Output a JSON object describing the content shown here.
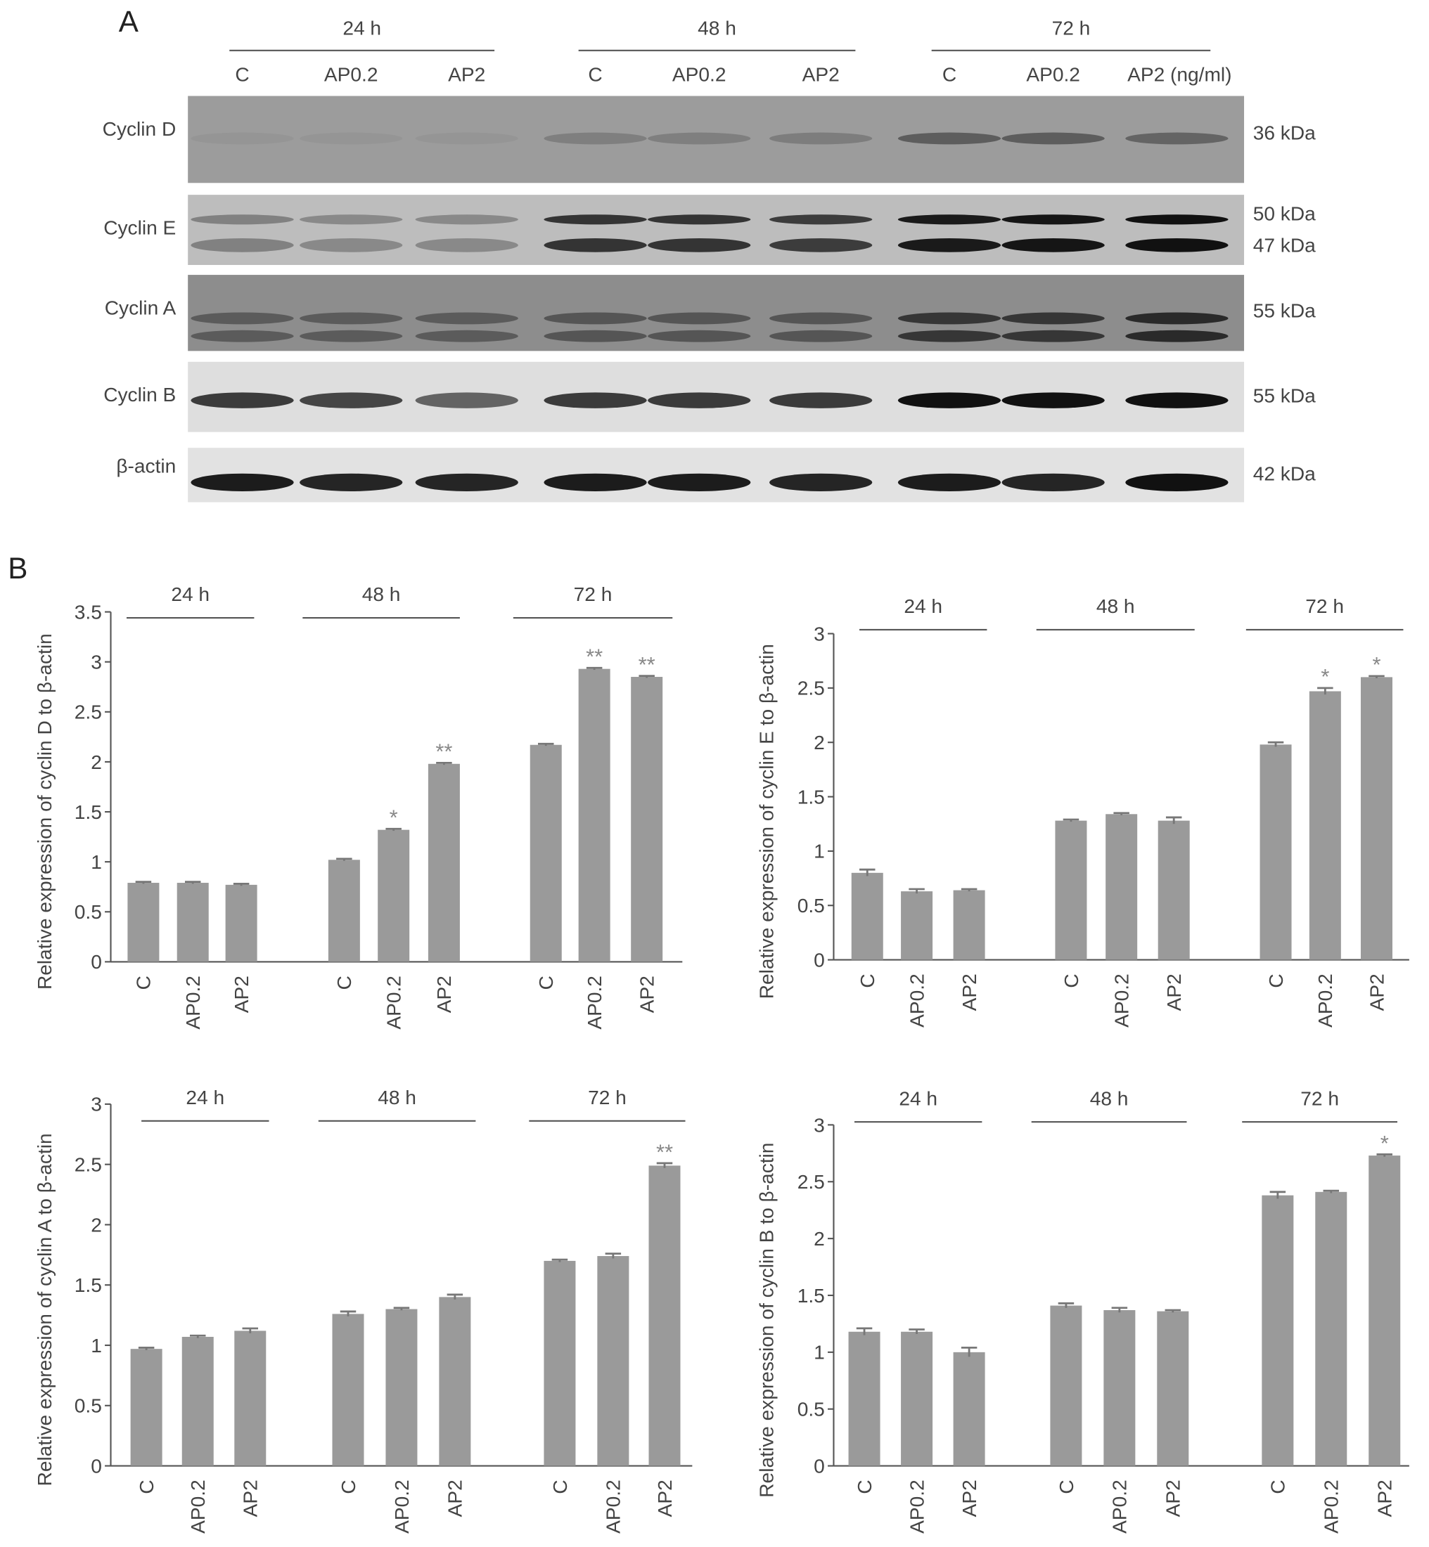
{
  "panel_a": {
    "label": "A",
    "time_groups": [
      "24 h",
      "48 h",
      "72 h"
    ],
    "lanes": [
      "C",
      "AP0.2",
      "AP2",
      "C",
      "AP0.2",
      "AP2",
      "C",
      "AP0.2",
      "AP2 (ng/ml)"
    ],
    "blots": [
      {
        "protein": "Cyclin D",
        "sizes": [
          "36 kDa"
        ]
      },
      {
        "protein": "Cyclin E",
        "sizes": [
          "50 kDa",
          "47 kDa"
        ]
      },
      {
        "protein": "Cyclin A",
        "sizes": [
          "55 kDa"
        ]
      },
      {
        "protein": "Cyclin B",
        "sizes": [
          "55 kDa"
        ]
      },
      {
        "protein": "β-actin",
        "sizes": [
          "42 kDa"
        ]
      }
    ]
  },
  "panel_b": {
    "label": "B"
  },
  "chart_data": [
    {
      "type": "bar",
      "ylabel": "Relative expression of cyclin D to β-actin",
      "groups": [
        "24 h",
        "48 h",
        "72 h"
      ],
      "categories": [
        "C",
        "AP0.2",
        "AP2",
        "C",
        "AP0.2",
        "AP2",
        "C",
        "AP0.2",
        "AP2"
      ],
      "values": [
        0.79,
        0.79,
        0.77,
        1.02,
        1.32,
        1.98,
        2.17,
        2.93,
        2.85
      ],
      "errors": [
        0.01,
        0.01,
        0.01,
        0.01,
        0.01,
        0.01,
        0.01,
        0.01,
        0.01
      ],
      "significance": [
        null,
        null,
        null,
        null,
        "*",
        "**",
        null,
        "**",
        "**"
      ],
      "color": "#9a9a9a",
      "ylim": [
        0,
        3.5
      ],
      "yticks": [
        0,
        0.5,
        1,
        1.5,
        2,
        2.5,
        3,
        3.5
      ]
    },
    {
      "type": "bar",
      "ylabel": "Relative expression of cyclin E to β-actin",
      "groups": [
        "24 h",
        "48 h",
        "72 h"
      ],
      "categories": [
        "C",
        "AP0.2",
        "AP2",
        "C",
        "AP0.2",
        "AP2",
        "C",
        "AP0.2",
        "AP2"
      ],
      "values": [
        0.8,
        0.63,
        0.64,
        1.28,
        1.34,
        1.28,
        1.98,
        2.47,
        2.6
      ],
      "errors": [
        0.03,
        0.02,
        0.01,
        0.01,
        0.01,
        0.03,
        0.02,
        0.03,
        0.01
      ],
      "significance": [
        null,
        null,
        null,
        null,
        null,
        null,
        null,
        "*",
        "*"
      ],
      "color": "#9a9a9a",
      "ylim": [
        0,
        3
      ],
      "yticks": [
        0,
        0.5,
        1,
        1.5,
        2,
        2.5,
        3
      ]
    },
    {
      "type": "bar",
      "ylabel": "Relative expression of cyclin A to β-actin",
      "groups": [
        "24 h",
        "48 h",
        "72 h"
      ],
      "categories": [
        "C",
        "AP0.2",
        "AP2",
        "C",
        "AP0.2",
        "AP2",
        "C",
        "AP0.2",
        "AP2"
      ],
      "values": [
        0.97,
        1.07,
        1.12,
        1.26,
        1.3,
        1.4,
        1.7,
        1.74,
        2.49
      ],
      "errors": [
        0.01,
        0.01,
        0.02,
        0.02,
        0.01,
        0.02,
        0.01,
        0.02,
        0.02
      ],
      "significance": [
        null,
        null,
        null,
        null,
        null,
        null,
        null,
        null,
        "**"
      ],
      "color": "#9a9a9a",
      "ylim": [
        0,
        3
      ],
      "yticks": [
        0,
        0.5,
        1,
        1.5,
        2,
        2.5,
        3
      ]
    },
    {
      "type": "bar",
      "ylabel": "Relative expression of cyclin B to β-actin",
      "groups": [
        "24 h",
        "48 h",
        "72 h"
      ],
      "categories": [
        "C",
        "AP0.2",
        "AP2",
        "C",
        "AP0.2",
        "AP2",
        "C",
        "AP0.2",
        "AP2"
      ],
      "values": [
        1.18,
        1.18,
        1.0,
        1.41,
        1.37,
        1.36,
        2.38,
        2.41,
        2.73
      ],
      "errors": [
        0.03,
        0.02,
        0.04,
        0.02,
        0.02,
        0.01,
        0.03,
        0.01,
        0.01
      ],
      "significance": [
        null,
        null,
        null,
        null,
        null,
        null,
        null,
        null,
        "*"
      ],
      "color": "#9a9a9a",
      "ylim": [
        0,
        3
      ],
      "yticks": [
        0,
        0.5,
        1,
        1.5,
        2,
        2.5,
        3
      ]
    }
  ]
}
